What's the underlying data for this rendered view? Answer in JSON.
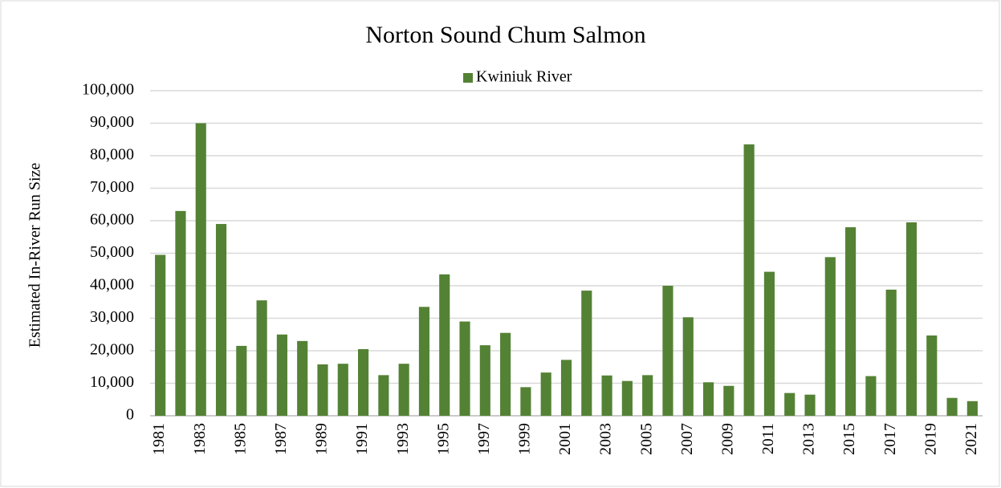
{
  "chart_data": {
    "type": "bar",
    "title": "Norton Sound Chum Salmon",
    "y_label": "Estimated In-River Run Size",
    "categories": [
      "1981",
      null,
      "1983",
      null,
      "1985",
      null,
      "1987",
      null,
      "1989",
      null,
      "1991",
      null,
      "1993",
      null,
      "1995",
      null,
      "1997",
      null,
      "1999",
      null,
      "2001",
      null,
      "2003",
      null,
      "2005",
      null,
      "2007",
      null,
      "2009",
      null,
      "2011",
      null,
      "2013",
      null,
      "2015",
      null,
      "2017",
      null,
      "2019",
      null,
      "2021"
    ],
    "series": [
      {
        "name": "Kwiniuk River",
        "color": "#548235",
        "values": [
          49500,
          63000,
          90000,
          59000,
          21500,
          35500,
          25000,
          23000,
          15800,
          16000,
          20500,
          12500,
          16000,
          33500,
          43500,
          29000,
          21700,
          25500,
          8800,
          13300,
          17200,
          38500,
          12400,
          10700,
          12500,
          40000,
          30300,
          10300,
          9200,
          83500,
          44300,
          7000,
          6500,
          48800,
          58000,
          12200,
          38800,
          59500,
          24700,
          5500,
          4500
        ]
      }
    ],
    "ylim": [
      0,
      100000
    ],
    "yticks": [
      0,
      {
        "value": 10000,
        "label": "10,000"
      },
      {
        "value": 20000,
        "label": "20,000"
      },
      {
        "value": 30000,
        "label": "30,000"
      },
      {
        "value": 40000,
        "label": "40,000"
      },
      {
        "value": 50000,
        "label": "50,000"
      },
      {
        "value": 60000,
        "label": "60,000"
      },
      {
        "value": 70000,
        "label": "70,000"
      },
      {
        "value": 80000,
        "label": "80,000"
      },
      {
        "value": 90000,
        "label": "90,000"
      },
      {
        "value": 100000,
        "label": "100,000"
      }
    ],
    "grid": true,
    "legend": "top"
  }
}
